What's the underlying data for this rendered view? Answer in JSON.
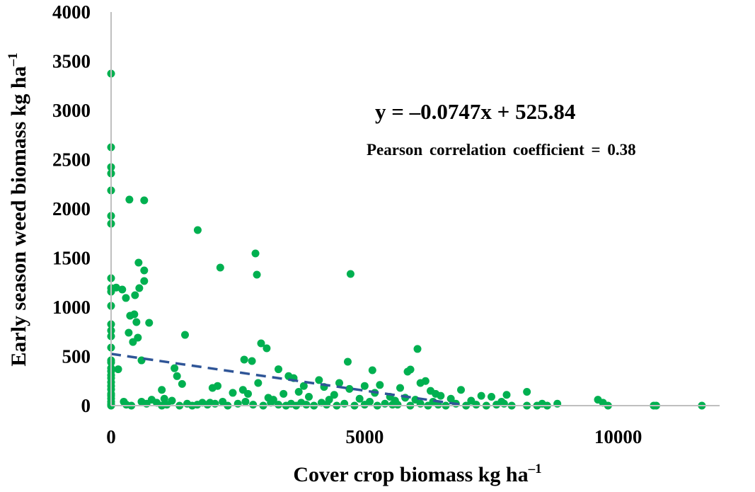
{
  "chart_data": {
    "type": "scatter",
    "title": "",
    "xlabel": "Cover crop biomass kg ha",
    "xlabel_sup": "–1",
    "ylabel": "Early season weed biomass kg ha",
    "ylabel_sup": "–1",
    "xlim": [
      0,
      12000
    ],
    "ylim": [
      0,
      4000
    ],
    "xticks": [
      0,
      5000,
      10000
    ],
    "yticks": [
      0,
      500,
      1000,
      1500,
      2000,
      2500,
      3000,
      3500,
      4000
    ],
    "grid": false,
    "colors": {
      "points": "#00b050",
      "trendline": "#2f5597",
      "axis": "#bfbfbf"
    },
    "annotations": {
      "equation": "y = –0.0747x + 525.84",
      "pearson": "Pearson correlation coefficient = 0.38"
    },
    "trendline": {
      "slope": -0.0747,
      "intercept": 525.84,
      "x_range": [
        0,
        7000
      ],
      "style": "dashed"
    },
    "points": [
      [
        0,
        3374
      ],
      [
        0,
        2626
      ],
      [
        0,
        2424
      ],
      [
        0,
        2360
      ],
      [
        0,
        2187
      ],
      [
        0,
        1928
      ],
      [
        0,
        1849
      ],
      [
        0,
        1295
      ],
      [
        0,
        1194
      ],
      [
        0,
        1158
      ],
      [
        0,
        1014
      ],
      [
        0,
        827
      ],
      [
        0,
        763
      ],
      [
        0,
        705
      ],
      [
        0,
        590
      ],
      [
        0,
        460
      ],
      [
        0,
        439
      ],
      [
        0,
        381
      ],
      [
        0,
        350
      ],
      [
        0,
        309
      ],
      [
        0,
        280
      ],
      [
        0,
        237
      ],
      [
        0,
        200
      ],
      [
        0,
        165
      ],
      [
        0,
        120
      ],
      [
        0,
        100
      ],
      [
        0,
        72
      ],
      [
        0,
        40
      ],
      [
        0,
        15
      ],
      [
        0,
        0
      ],
      [
        361,
        2094
      ],
      [
        653,
        2086
      ],
      [
        1708,
        1784
      ],
      [
        2153,
        1403
      ],
      [
        2847,
        1547
      ],
      [
        2875,
        1331
      ],
      [
        4722,
        1338
      ],
      [
        542,
        1453
      ],
      [
        653,
        1374
      ],
      [
        653,
        1266
      ],
      [
        556,
        1194
      ],
      [
        472,
        1122
      ],
      [
        292,
        1094
      ],
      [
        458,
        928
      ],
      [
        375,
        914
      ],
      [
        500,
        849
      ],
      [
        750,
        842
      ],
      [
        347,
        741
      ],
      [
        528,
        691
      ],
      [
        431,
        647
      ],
      [
        1458,
        719
      ],
      [
        2958,
        633
      ],
      [
        3069,
        583
      ],
      [
        2625,
        468
      ],
      [
        2778,
        453
      ],
      [
        4667,
        446
      ],
      [
        5153,
        360
      ],
      [
        6042,
        576
      ],
      [
        5847,
        345
      ],
      [
        5903,
        367
      ],
      [
        140,
        370
      ],
      [
        600,
        460
      ],
      [
        100,
        1200
      ],
      [
        220,
        1180
      ],
      [
        1250,
        380
      ],
      [
        1300,
        300
      ],
      [
        1400,
        220
      ],
      [
        1000,
        160
      ],
      [
        2100,
        200
      ],
      [
        2000,
        180
      ],
      [
        3300,
        370
      ],
      [
        3500,
        300
      ],
      [
        3600,
        280
      ],
      [
        3800,
        200
      ],
      [
        4100,
        260
      ],
      [
        4500,
        230
      ],
      [
        4700,
        170
      ],
      [
        4200,
        190
      ],
      [
        5000,
        200
      ],
      [
        5300,
        210
      ],
      [
        5200,
        130
      ],
      [
        5500,
        90
      ],
      [
        5700,
        180
      ],
      [
        6100,
        230
      ],
      [
        6200,
        250
      ],
      [
        6300,
        150
      ],
      [
        6400,
        120
      ],
      [
        6500,
        100
      ],
      [
        6900,
        160
      ],
      [
        7300,
        100
      ],
      [
        7500,
        90
      ],
      [
        8200,
        140
      ],
      [
        7800,
        110
      ],
      [
        2400,
        130
      ],
      [
        2600,
        160
      ],
      [
        2700,
        120
      ],
      [
        2900,
        230
      ],
      [
        3100,
        80
      ],
      [
        3200,
        60
      ],
      [
        3400,
        120
      ],
      [
        3700,
        140
      ],
      [
        3900,
        90
      ],
      [
        4300,
        60
      ],
      [
        4400,
        110
      ],
      [
        4900,
        70
      ],
      [
        5100,
        40
      ],
      [
        5600,
        50
      ],
      [
        5800,
        80
      ],
      [
        6000,
        60
      ],
      [
        6700,
        70
      ],
      [
        7100,
        50
      ],
      [
        7700,
        40
      ],
      [
        8500,
        20
      ],
      [
        9600,
        60
      ],
      [
        9700,
        30
      ],
      [
        600,
        40
      ],
      [
        700,
        20
      ],
      [
        900,
        30
      ],
      [
        1100,
        10
      ],
      [
        1200,
        50
      ],
      [
        1500,
        20
      ],
      [
        1600,
        0
      ],
      [
        1800,
        30
      ],
      [
        1900,
        10
      ],
      [
        2200,
        40
      ],
      [
        2300,
        0
      ],
      [
        2500,
        20
      ],
      [
        2800,
        10
      ],
      [
        3000,
        0
      ],
      [
        3150,
        30
      ],
      [
        3300,
        10
      ],
      [
        3450,
        0
      ],
      [
        3550,
        20
      ],
      [
        3650,
        0
      ],
      [
        3750,
        30
      ],
      [
        3850,
        10
      ],
      [
        4000,
        0
      ],
      [
        4150,
        30
      ],
      [
        4250,
        10
      ],
      [
        4600,
        20
      ],
      [
        4800,
        0
      ],
      [
        5000,
        10
      ],
      [
        5250,
        0
      ],
      [
        5400,
        20
      ],
      [
        5650,
        10
      ],
      [
        5900,
        0
      ],
      [
        6100,
        20
      ],
      [
        6250,
        0
      ],
      [
        6450,
        10
      ],
      [
        6600,
        0
      ],
      [
        6800,
        20
      ],
      [
        7000,
        0
      ],
      [
        7200,
        10
      ],
      [
        7400,
        0
      ],
      [
        7600,
        10
      ],
      [
        7900,
        0
      ],
      [
        8200,
        0
      ],
      [
        8400,
        0
      ],
      [
        8600,
        0
      ],
      [
        8800,
        20
      ],
      [
        9800,
        0
      ],
      [
        10700,
        0
      ],
      [
        10750,
        0
      ],
      [
        11650,
        0
      ],
      [
        300,
        10
      ],
      [
        400,
        0
      ],
      [
        800,
        60
      ],
      [
        1000,
        0
      ],
      [
        1350,
        0
      ],
      [
        1700,
        10
      ],
      [
        2050,
        20
      ],
      [
        2650,
        40
      ],
      [
        4450,
        0
      ],
      [
        5550,
        10
      ],
      [
        6350,
        40
      ],
      [
        7750,
        20
      ],
      [
        250,
        40
      ],
      [
        1050,
        70
      ],
      [
        1950,
        30
      ]
    ]
  }
}
